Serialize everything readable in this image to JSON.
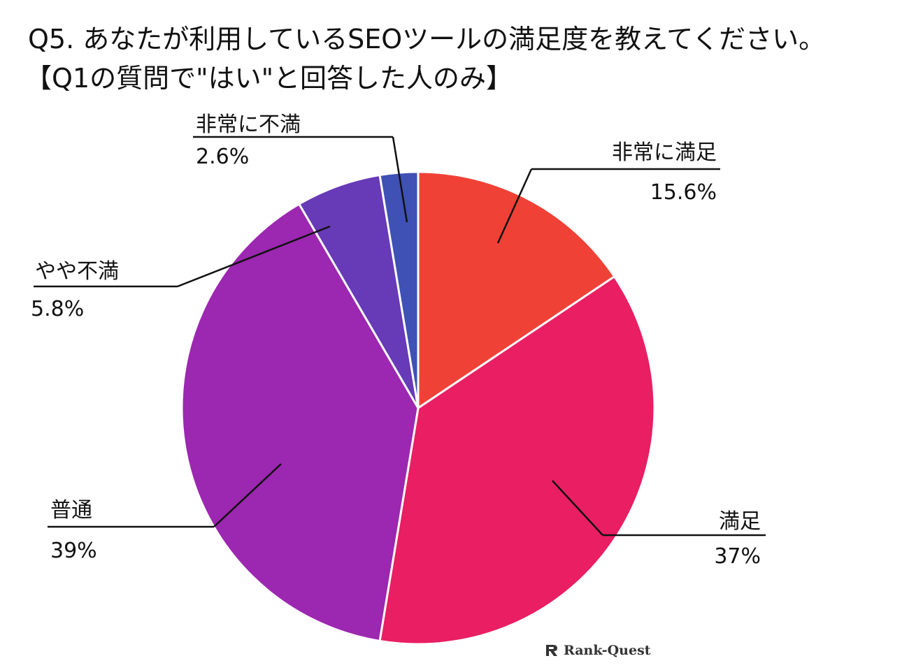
{
  "title": "Q5. あなたが利用しているSEOツールの満足度を教えてください。",
  "subtitle": "【Q1の質問で\"はい\"と回答した人のみ】",
  "watermark": "Rank-Quest",
  "colors": {
    "very_satisfied": "#f04136",
    "satisfied": "#e91e63",
    "neutral": "#9c27b0",
    "somewhat_dissatisfied": "#673ab7",
    "very_dissatisfied": "#3f51b5"
  },
  "chart_data": {
    "type": "pie",
    "start": "12 o'clock",
    "direction": "clockwise",
    "slices": [
      {
        "label": "非常に満足",
        "value": 15.6,
        "display": "15.6%",
        "color": "#f04136"
      },
      {
        "label": "満足",
        "value": 37,
        "display": "37%",
        "color": "#e91e63"
      },
      {
        "label": "普通",
        "value": 39,
        "display": "39%",
        "color": "#9c27b0"
      },
      {
        "label": "やや不満",
        "value": 5.8,
        "display": "5.8%",
        "color": "#673ab7"
      },
      {
        "label": "非常に不満",
        "value": 2.6,
        "display": "2.6%",
        "color": "#3f51b5"
      }
    ]
  }
}
